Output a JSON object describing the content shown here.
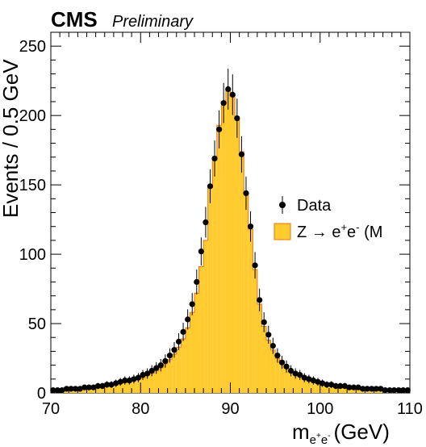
{
  "chart_data": {
    "type": "bar",
    "experiment_label": "CMS",
    "status_label": "Preliminary",
    "xlabel": {
      "base": "m",
      "sub_pre": "e",
      "sub_sup1": "+",
      "sub_mid": "e",
      "sub_sup2": "-",
      "unit": "(GeV)"
    },
    "ylabel": "Events / 0.5 GeV",
    "xlim": [
      70,
      110
    ],
    "ylim": [
      0,
      260
    ],
    "x_ticks": [
      70,
      80,
      90,
      100,
      110
    ],
    "y_ticks": [
      0,
      50,
      100,
      150,
      200,
      250
    ],
    "bin_width": 0.5,
    "colors": {
      "mc_fill": "#ffcb2e",
      "mc_line": "#e8740f",
      "data_marker": "#000000"
    },
    "legend": {
      "placement": "right",
      "data_label": "Data",
      "mc_label": {
        "pre": "Z → e",
        "sup1": "+",
        "mid": "e",
        "sup2": "-",
        "post": " (M"
      }
    },
    "series": [
      {
        "name": "Data",
        "x": [
          70.25,
          70.75,
          71.25,
          71.75,
          72.25,
          72.75,
          73.25,
          73.75,
          74.25,
          74.75,
          75.25,
          75.75,
          76.25,
          76.75,
          77.25,
          77.75,
          78.25,
          78.75,
          79.25,
          79.75,
          80.25,
          80.75,
          81.25,
          81.75,
          82.25,
          82.75,
          83.25,
          83.75,
          84.25,
          84.75,
          85.25,
          85.75,
          86.25,
          86.75,
          87.25,
          87.75,
          88.25,
          88.75,
          89.25,
          89.75,
          90.25,
          90.75,
          91.25,
          91.75,
          92.25,
          92.75,
          93.25,
          93.75,
          94.25,
          94.75,
          95.25,
          95.75,
          96.25,
          96.75,
          97.25,
          97.75,
          98.25,
          98.75,
          99.25,
          99.75,
          100.25,
          100.75,
          101.25,
          101.75,
          102.25,
          102.75,
          103.25,
          103.75,
          104.25,
          104.75,
          105.25,
          105.75,
          106.25,
          106.75,
          107.25,
          107.75,
          108.25,
          108.75,
          109.25,
          109.75
        ],
        "values": [
          2,
          2,
          2,
          3,
          3,
          3,
          3,
          4,
          4,
          4,
          5,
          5,
          6,
          6,
          7,
          8,
          9,
          9,
          10,
          11,
          13,
          14,
          16,
          18,
          20,
          23,
          27,
          31,
          37,
          44,
          53,
          64,
          80,
          102,
          123,
          149,
          169,
          190,
          209,
          219,
          215,
          198,
          172,
          144,
          120,
          92,
          67,
          51,
          42,
          34,
          27,
          22,
          19,
          16,
          14,
          13,
          11,
          10,
          9,
          8,
          7,
          6,
          6,
          5,
          5,
          5,
          4,
          4,
          4,
          3,
          3,
          3,
          3,
          3,
          2,
          2,
          2,
          2,
          2,
          2
        ]
      },
      {
        "name": "Z → e+e- (MC)",
        "x": [
          70.25,
          70.75,
          71.25,
          71.75,
          72.25,
          72.75,
          73.25,
          73.75,
          74.25,
          74.75,
          75.25,
          75.75,
          76.25,
          76.75,
          77.25,
          77.75,
          78.25,
          78.75,
          79.25,
          79.75,
          80.25,
          80.75,
          81.25,
          81.75,
          82.25,
          82.75,
          83.25,
          83.75,
          84.25,
          84.75,
          85.25,
          85.75,
          86.25,
          86.75,
          87.25,
          87.75,
          88.25,
          88.75,
          89.25,
          89.75,
          90.25,
          90.75,
          91.25,
          91.75,
          92.25,
          92.75,
          93.25,
          93.75,
          94.25,
          94.75,
          95.25,
          95.75,
          96.25,
          96.75,
          97.25,
          97.75,
          98.25,
          98.75,
          99.25,
          99.75,
          100.25,
          100.75,
          101.25,
          101.75,
          102.25,
          102.75,
          103.25,
          103.75,
          104.25,
          104.75,
          105.25,
          105.75,
          106.25,
          106.75,
          107.25,
          107.75,
          108.25,
          108.75,
          109.25,
          109.75
        ],
        "values": [
          2,
          2,
          2,
          2,
          3,
          3,
          3,
          3,
          4,
          4,
          4,
          5,
          5,
          6,
          6,
          7,
          8,
          8,
          9,
          10,
          11,
          13,
          14,
          16,
          18,
          21,
          24,
          28,
          33,
          39,
          47,
          58,
          72,
          91,
          110,
          149,
          170,
          193,
          210,
          218,
          216,
          199,
          174,
          145,
          118,
          89,
          64,
          48,
          38,
          31,
          25,
          21,
          18,
          15,
          13,
          12,
          10,
          9,
          8,
          7,
          7,
          6,
          5,
          5,
          5,
          4,
          4,
          4,
          3,
          3,
          3,
          3,
          3,
          2,
          2,
          2,
          2,
          2,
          2,
          2
        ]
      }
    ]
  }
}
